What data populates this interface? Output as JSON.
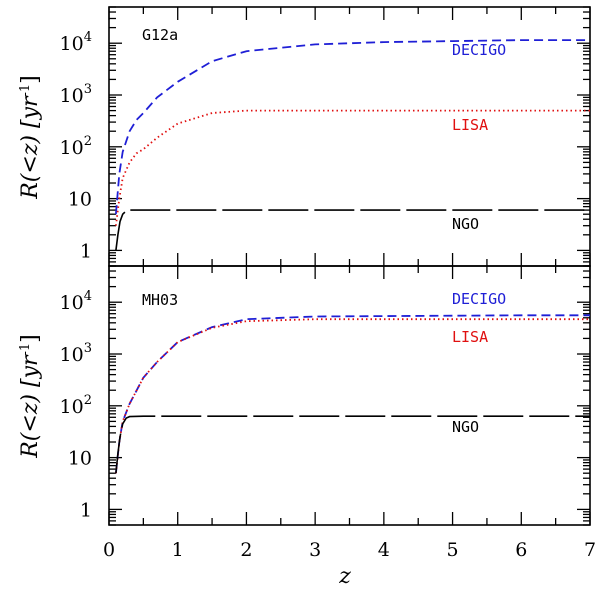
{
  "chart_data": {
    "type": "line",
    "xlabel": "z",
    "xlim": [
      0,
      7
    ],
    "x_ticks": [
      "0",
      "1",
      "2",
      "3",
      "4",
      "5",
      "6",
      "7"
    ],
    "colors": {
      "DECIGO": "#1f1fd6",
      "LISA": "#e01010",
      "NGO": "#000000",
      "axis": "#000000"
    },
    "panels": [
      {
        "name": "G12a",
        "ylabel": "R(<z) [yr⁻¹]",
        "ylabel_base": "R(<z) [yr",
        "ylabel_exp": "-1",
        "ylabel_close": "]",
        "yscale": "log",
        "ylim": [
          0.5,
          50000
        ],
        "y_ticks": [
          {
            "value": 1,
            "base": "1",
            "exp": ""
          },
          {
            "value": 10,
            "base": "10",
            "exp": ""
          },
          {
            "value": 100,
            "base": "10",
            "exp": "2"
          },
          {
            "value": 1000,
            "base": "10",
            "exp": "3"
          },
          {
            "value": 10000,
            "base": "10",
            "exp": "4"
          }
        ],
        "series": [
          {
            "name": "DECIGO",
            "style": "dashed",
            "label": "DECIGO",
            "x": [
              0.1,
              0.15,
              0.2,
              0.3,
              0.4,
              0.5,
              0.7,
              1.0,
              1.5,
              2.0,
              3.0,
              4.0,
              5.0,
              6.0,
              7.0
            ],
            "y": [
              5,
              30,
              80,
              200,
              330,
              450,
              900,
              1800,
              4500,
              7000,
              9500,
              10500,
              11000,
              11500,
              11500
            ]
          },
          {
            "name": "LISA",
            "style": "dotted",
            "label": "LISA",
            "x": [
              0.1,
              0.15,
              0.2,
              0.3,
              0.4,
              0.5,
              0.7,
              1.0,
              1.5,
              2.0,
              3.0,
              5.0,
              7.0
            ],
            "y": [
              3,
              10,
              25,
              50,
              75,
              90,
              150,
              280,
              450,
              500,
              500,
              500,
              500
            ]
          },
          {
            "name": "NGO",
            "style": "long-dash",
            "label": "NGO",
            "x": [
              0.1,
              0.13,
              0.16,
              0.2,
              0.25,
              0.3,
              0.5,
              1.0,
              3.0,
              5.0,
              7.0
            ],
            "y": [
              1,
              2,
              3.6,
              5,
              5.8,
              6,
              6,
              6,
              6,
              6,
              6
            ]
          }
        ]
      },
      {
        "name": "MH03",
        "ylabel": "R(<z) [yr⁻¹]",
        "ylabel_base": "R(<z) [yr",
        "ylabel_exp": "-1",
        "ylabel_close": "]",
        "yscale": "log",
        "ylim": [
          0.5,
          50000
        ],
        "y_ticks": [
          {
            "value": 1,
            "base": "1",
            "exp": ""
          },
          {
            "value": 10,
            "base": "10",
            "exp": ""
          },
          {
            "value": 100,
            "base": "10",
            "exp": "2"
          },
          {
            "value": 1000,
            "base": "10",
            "exp": "3"
          },
          {
            "value": 10000,
            "base": "10",
            "exp": "4"
          }
        ],
        "series": [
          {
            "name": "DECIGO",
            "style": "dashed",
            "label": "DECIGO",
            "x": [
              0.1,
              0.15,
              0.2,
              0.3,
              0.5,
              0.7,
              1.0,
              1.5,
              2.0,
              3.0,
              4.0,
              5.0,
              6.0,
              7.0
            ],
            "y": [
              5,
              20,
              50,
              110,
              350,
              700,
              1700,
              3300,
              4700,
              5300,
              5400,
              5500,
              5600,
              5600
            ]
          },
          {
            "name": "LISA",
            "style": "dotted",
            "label": "LISA",
            "x": [
              0.1,
              0.15,
              0.2,
              0.3,
              0.5,
              0.7,
              1.0,
              1.5,
              2.0,
              3.0,
              4.0,
              5.0,
              6.0,
              7.0
            ],
            "y": [
              5,
              20,
              50,
              110,
              350,
              700,
              1700,
              3200,
              4300,
              4700,
              4700,
              4700,
              4700,
              4700
            ]
          },
          {
            "name": "NGO",
            "style": "long-dash",
            "label": "NGO",
            "x": [
              0.1,
              0.13,
              0.16,
              0.2,
              0.25,
              0.3,
              0.5,
              1.0,
              3.0,
              5.0,
              7.0
            ],
            "y": [
              5,
              12,
              25,
              45,
              58,
              62,
              63,
              63,
              63,
              63,
              63
            ]
          }
        ]
      }
    ]
  }
}
